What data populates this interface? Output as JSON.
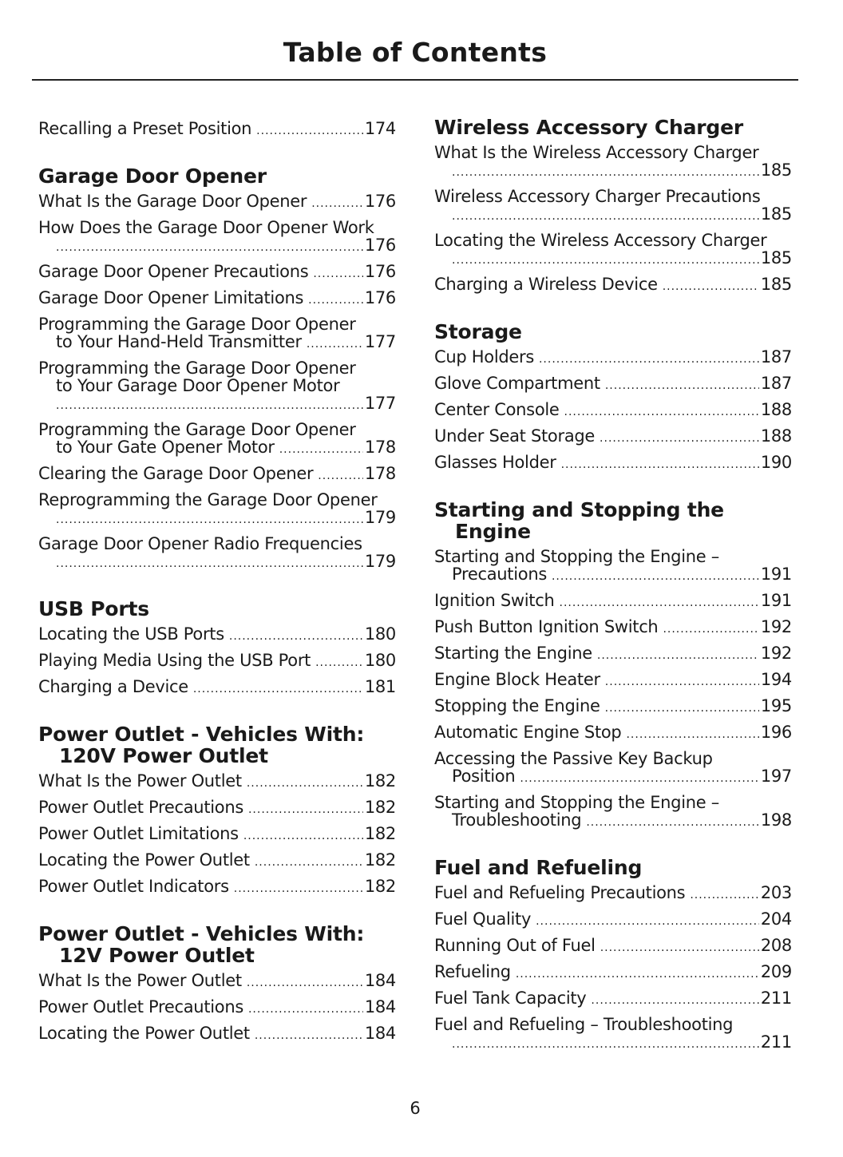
{
  "title": "Table of Contents",
  "page_number": "6",
  "columns": [
    [
      {
        "heading": [],
        "entries": [
          {
            "lines": [
              "Recalling a Preset Position"
            ],
            "page": "174"
          }
        ]
      },
      {
        "heading": [
          "Garage Door Opener"
        ],
        "entries": [
          {
            "lines": [
              "What Is the Garage Door Opener"
            ],
            "page": "176"
          },
          {
            "lines": [
              "How Does the Garage Door Opener Work",
              ""
            ],
            "page": "176"
          },
          {
            "lines": [
              "Garage Door Opener Precautions"
            ],
            "page": "176"
          },
          {
            "lines": [
              "Garage Door Opener Limitations"
            ],
            "page": "176"
          },
          {
            "lines": [
              "Programming the Garage Door Opener",
              "to Your Hand-Held Transmitter"
            ],
            "page": "177"
          },
          {
            "lines": [
              "Programming the Garage Door Opener",
              "to Your Garage Door Opener Motor",
              ""
            ],
            "page": "177"
          },
          {
            "lines": [
              "Programming the Garage Door Opener",
              "to Your Gate Opener Motor"
            ],
            "page": "178"
          },
          {
            "lines": [
              "Clearing the Garage Door Opener"
            ],
            "page": "178"
          },
          {
            "lines": [
              "Reprogramming the Garage Door Opener",
              ""
            ],
            "page": "179"
          },
          {
            "lines": [
              "Garage Door Opener Radio Frequencies",
              ""
            ],
            "page": "179"
          }
        ]
      },
      {
        "heading": [
          "USB Ports"
        ],
        "entries": [
          {
            "lines": [
              "Locating the USB Ports"
            ],
            "page": "180"
          },
          {
            "lines": [
              "Playing Media Using the USB Port"
            ],
            "page": "180"
          },
          {
            "lines": [
              "Charging a Device"
            ],
            "page": "181"
          }
        ]
      },
      {
        "heading": [
          "Power Outlet - Vehicles With:",
          "120V Power Outlet"
        ],
        "entries": [
          {
            "lines": [
              "What Is the Power Outlet"
            ],
            "page": "182"
          },
          {
            "lines": [
              "Power Outlet Precautions"
            ],
            "page": "182"
          },
          {
            "lines": [
              "Power Outlet Limitations"
            ],
            "page": "182"
          },
          {
            "lines": [
              "Locating the Power Outlet"
            ],
            "page": "182"
          },
          {
            "lines": [
              "Power Outlet Indicators"
            ],
            "page": "182"
          }
        ]
      },
      {
        "heading": [
          "Power Outlet - Vehicles With:",
          "12V Power Outlet"
        ],
        "entries": [
          {
            "lines": [
              "What Is the Power Outlet"
            ],
            "page": "184"
          },
          {
            "lines": [
              "Power Outlet Precautions"
            ],
            "page": "184"
          },
          {
            "lines": [
              "Locating the Power Outlet"
            ],
            "page": "184"
          }
        ]
      }
    ],
    [
      {
        "heading": [
          "Wireless Accessory Charger"
        ],
        "entries": [
          {
            "lines": [
              "What Is the Wireless Accessory Charger",
              ""
            ],
            "page": "185"
          },
          {
            "lines": [
              "Wireless Accessory Charger Precautions",
              ""
            ],
            "page": "185"
          },
          {
            "lines": [
              "Locating the Wireless Accessory Charger",
              ""
            ],
            "page": "185"
          },
          {
            "lines": [
              "Charging a Wireless Device"
            ],
            "page": "185"
          }
        ]
      },
      {
        "heading": [
          "Storage"
        ],
        "entries": [
          {
            "lines": [
              "Cup Holders"
            ],
            "page": "187"
          },
          {
            "lines": [
              "Glove Compartment"
            ],
            "page": "187"
          },
          {
            "lines": [
              "Center Console"
            ],
            "page": "188"
          },
          {
            "lines": [
              "Under Seat Storage"
            ],
            "page": "188"
          },
          {
            "lines": [
              "Glasses Holder"
            ],
            "page": "190"
          }
        ]
      },
      {
        "heading": [
          "Starting and Stopping the",
          "Engine"
        ],
        "entries": [
          {
            "lines": [
              "Starting and Stopping the Engine –",
              "Precautions"
            ],
            "page": "191"
          },
          {
            "lines": [
              "Ignition Switch"
            ],
            "page": "191"
          },
          {
            "lines": [
              "Push Button Ignition Switch"
            ],
            "page": "192"
          },
          {
            "lines": [
              "Starting the Engine"
            ],
            "page": "192"
          },
          {
            "lines": [
              "Engine Block Heater"
            ],
            "page": "194"
          },
          {
            "lines": [
              "Stopping the Engine"
            ],
            "page": "195"
          },
          {
            "lines": [
              "Automatic Engine Stop"
            ],
            "page": "196"
          },
          {
            "lines": [
              "Accessing the Passive Key Backup",
              "Position"
            ],
            "page": "197"
          },
          {
            "lines": [
              "Starting and Stopping the Engine –",
              "Troubleshooting"
            ],
            "page": "198"
          }
        ]
      },
      {
        "heading": [
          "Fuel and Refueling"
        ],
        "entries": [
          {
            "lines": [
              "Fuel and Refueling Precautions"
            ],
            "page": "203"
          },
          {
            "lines": [
              "Fuel Quality"
            ],
            "page": "204"
          },
          {
            "lines": [
              "Running Out of Fuel"
            ],
            "page": "208"
          },
          {
            "lines": [
              "Refueling"
            ],
            "page": "209"
          },
          {
            "lines": [
              "Fuel Tank Capacity"
            ],
            "page": "211"
          },
          {
            "lines": [
              "Fuel and Refueling – Troubleshooting",
              ""
            ],
            "page": "211"
          }
        ]
      }
    ]
  ]
}
